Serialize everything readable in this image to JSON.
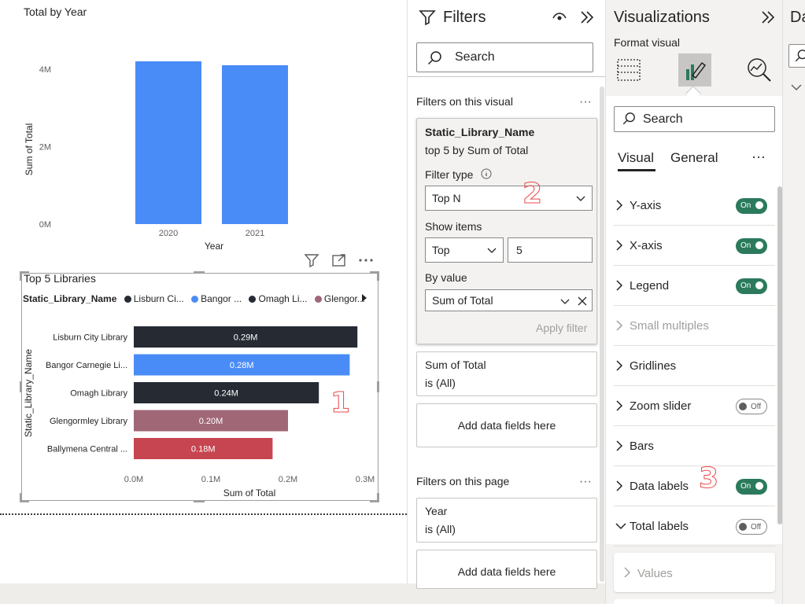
{
  "colors": {
    "accent_blue": "#4a8cf7",
    "dark_bar": "#252a33",
    "mauve_bar": "#a06777",
    "red_bar": "#c64550",
    "toggle_on": "#2b7a5c",
    "annotation": "#e84b4b"
  },
  "canvas": {
    "chart1": {
      "title": "Total by Year",
      "chart_data": {
        "type": "bar",
        "title": "Total by Year",
        "categories": [
          "2020",
          "2021"
        ],
        "values": [
          4.2,
          4.1
        ],
        "value_unit": "M",
        "xlabel": "Year",
        "ylabel": "Sum of Total",
        "yticks": [
          "4M",
          "2M",
          "0M"
        ],
        "ylim": [
          0,
          4.2
        ],
        "color": "#4a8cf7",
        "grid": false
      }
    },
    "visual_header_icons": [
      "filter-icon",
      "focus-mode-icon",
      "more-options-icon"
    ],
    "chart2": {
      "title": "Top 5 Libraries",
      "legend": {
        "field": "Static_Library_Name",
        "items": [
          {
            "label": "Lisburn Ci...",
            "color": "#252a33"
          },
          {
            "label": "Bangor ...",
            "color": "#4a8cf7"
          },
          {
            "label": "Omagh Li...",
            "color": "#252a33"
          },
          {
            "label": "Glengor...",
            "color": "#a06777"
          }
        ]
      },
      "chart_data": {
        "type": "bar",
        "orientation": "horizontal",
        "title": "Top 5 Libraries",
        "categories": [
          "Lisburn City Library",
          "Bangor Carnegie Li...",
          "Omagh Library",
          "Glengormley Library",
          "Ballymena Central ..."
        ],
        "values": [
          0.29,
          0.28,
          0.24,
          0.2,
          0.18
        ],
        "data_labels": [
          "0.29M",
          "0.28M",
          "0.24M",
          "0.20M",
          "0.18M"
        ],
        "colors": [
          "#252a33",
          "#4a8cf7",
          "#252a33",
          "#a06777",
          "#c64550"
        ],
        "xlabel": "Sum of Total",
        "ylabel": "Static_Library_Name",
        "xticks": [
          "0.0M",
          "0.1M",
          "0.2M",
          "0.3M"
        ],
        "xlim": [
          0,
          0.3
        ],
        "legend_position": "top"
      }
    },
    "annotations": {
      "one": "1",
      "two": "2",
      "three": "3"
    }
  },
  "filters": {
    "title": "Filters",
    "search_placeholder": "Search",
    "on_visual_label": "Filters on this visual",
    "active_card": {
      "field": "Static_Library_Name",
      "summary": "top 5 by Sum of Total",
      "filter_type_label": "Filter type",
      "filter_type_value": "Top N",
      "show_items_label": "Show items",
      "show_items_direction": "Top",
      "show_items_count": "5",
      "by_value_label": "By value",
      "by_value_field": "Sum of Total",
      "apply_label": "Apply filter"
    },
    "card_sum": {
      "field": "Sum of Total",
      "state": "is (All)"
    },
    "add_fields_label": "Add data fields here",
    "on_page_label": "Filters on this page",
    "card_year": {
      "field": "Year",
      "state": "is (All)"
    },
    "add_fields_label_2": "Add data fields here"
  },
  "visualizations": {
    "title": "Visualizations",
    "format_visual_label": "Format visual",
    "search_placeholder": "Search",
    "tabs": [
      {
        "label": "Visual",
        "active": true
      },
      {
        "label": "General",
        "active": false
      }
    ],
    "sections": [
      {
        "label": "Y-axis",
        "toggle": "On",
        "on": true,
        "disabled": false
      },
      {
        "label": "X-axis",
        "toggle": "On",
        "on": true,
        "disabled": false
      },
      {
        "label": "Legend",
        "toggle": "On",
        "on": true,
        "disabled": false
      },
      {
        "label": "Small multiples",
        "toggle": "",
        "on": null,
        "disabled": true
      },
      {
        "label": "Gridlines",
        "toggle": "",
        "on": null,
        "disabled": false
      },
      {
        "label": "Zoom slider",
        "toggle": "Off",
        "on": false,
        "disabled": false
      },
      {
        "label": "Bars",
        "toggle": "",
        "on": null,
        "disabled": false
      },
      {
        "label": "Data labels",
        "toggle": "On",
        "on": true,
        "disabled": false
      },
      {
        "label": "Total labels",
        "toggle": "Off",
        "on": false,
        "disabled": false,
        "expanded": true
      }
    ],
    "subsection": "Values"
  },
  "data_pane": {
    "title": "Da"
  }
}
